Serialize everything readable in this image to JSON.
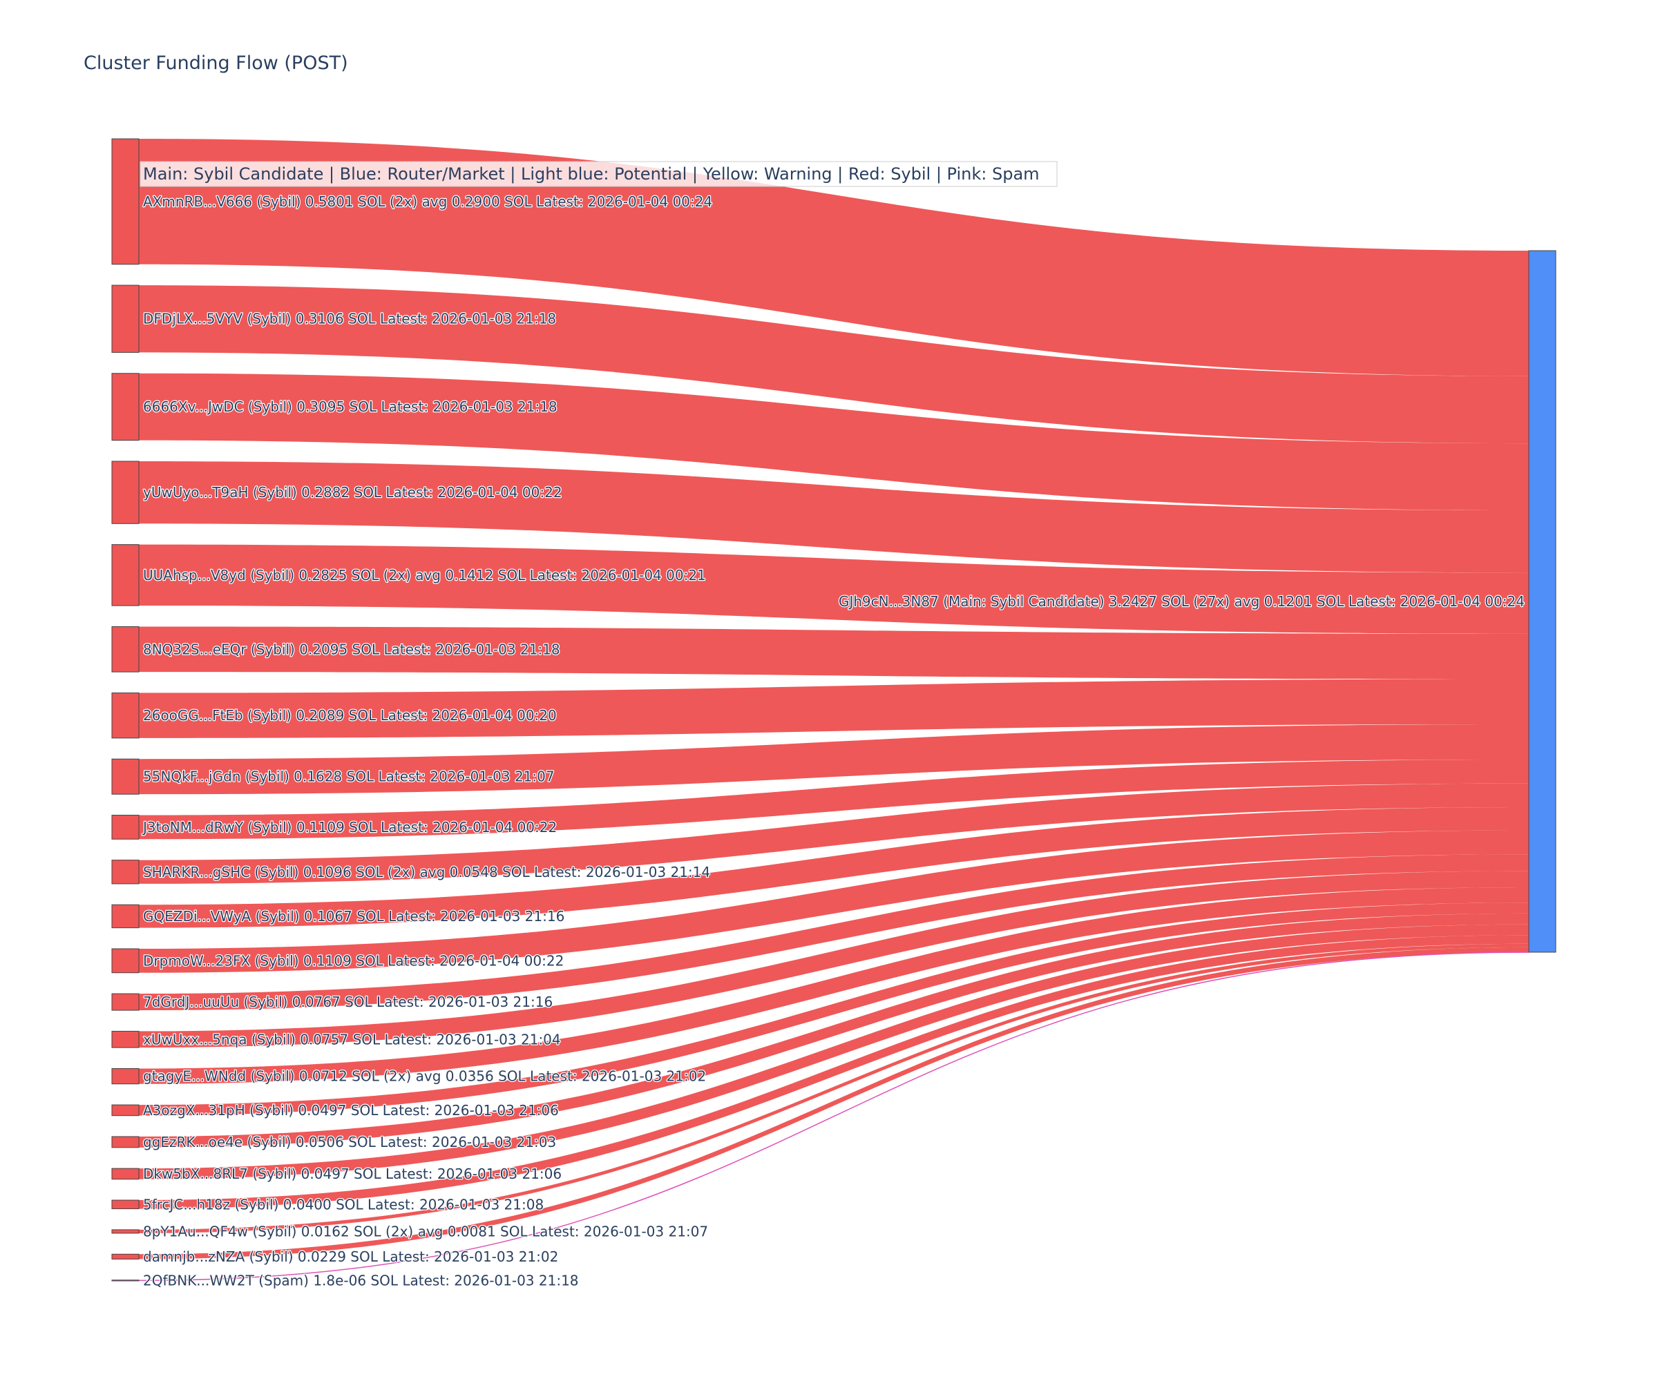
{
  "chart_data": {
    "type": "sankey",
    "title": "Cluster Funding Flow (POST)",
    "legend": "Main: Sybil Candidate  |  Blue: Router/Market | Light blue: Potential | Yellow: Warning | Red: Sybil | Pink: Spam",
    "target": {
      "name": "GJh9cN...3N87 (Main: Sybil Candidate) 3.2427 SOL (27x) avg 0.1201 SOL Latest: 2026-01-04 00:24",
      "value": 3.2427,
      "color": "#4f8ff7"
    },
    "colors": {
      "sybil": "#ef5555",
      "spam": "#e052b8",
      "node_border": "#444444"
    },
    "sources": [
      {
        "label": "AXmnRB...V666 (Sybil) 0.5801 SOL (2x) avg 0.2900 SOL Latest: 2026-01-04 00:24",
        "value": 0.5801,
        "category": "sybil"
      },
      {
        "label": "DFDjLX...5VYV (Sybil) 0.3106 SOL Latest: 2026-01-03 21:18",
        "value": 0.3106,
        "category": "sybil"
      },
      {
        "label": "6666Xv...JwDC (Sybil) 0.3095 SOL Latest: 2026-01-03 21:18",
        "value": 0.3095,
        "category": "sybil"
      },
      {
        "label": "yUwUyo...T9aH (Sybil) 0.2882 SOL Latest: 2026-01-04 00:22",
        "value": 0.2882,
        "category": "sybil"
      },
      {
        "label": "UUAhsp...V8yd (Sybil) 0.2825 SOL (2x) avg 0.1412 SOL Latest: 2026-01-04 00:21",
        "value": 0.2825,
        "category": "sybil"
      },
      {
        "label": "8NQ32S...eEQr (Sybil) 0.2095 SOL Latest: 2026-01-03 21:18",
        "value": 0.2095,
        "category": "sybil"
      },
      {
        "label": "26ooGG...FtEb (Sybil) 0.2089 SOL Latest: 2026-01-04 00:20",
        "value": 0.2089,
        "category": "sybil"
      },
      {
        "label": "55NQkF...jGdn (Sybil) 0.1628 SOL Latest: 2026-01-03 21:07",
        "value": 0.1628,
        "category": "sybil"
      },
      {
        "label": "J3toNM...dRwY (Sybil) 0.1109 SOL Latest: 2026-01-04 00:22",
        "value": 0.1109,
        "category": "sybil"
      },
      {
        "label": "SHARKR...gSHC (Sybil) 0.1096 SOL (2x) avg 0.0548 SOL Latest: 2026-01-03 21:14",
        "value": 0.1096,
        "category": "sybil"
      },
      {
        "label": "GQEZDi...VWyA (Sybil) 0.1067 SOL Latest: 2026-01-03 21:16",
        "value": 0.1067,
        "category": "sybil"
      },
      {
        "label": "DrpmoW...23FX (Sybil) 0.1109 SOL Latest: 2026-01-04 00:22",
        "value": 0.1109,
        "category": "sybil"
      },
      {
        "label": "7dGrdJ...uuUu (Sybil) 0.0767 SOL Latest: 2026-01-03 21:16",
        "value": 0.0767,
        "category": "sybil"
      },
      {
        "label": "xUwUxx...5nqa (Sybil) 0.0757 SOL Latest: 2026-01-03 21:04",
        "value": 0.0757,
        "category": "sybil"
      },
      {
        "label": "gtagyE...WNdd (Sybil) 0.0712 SOL (2x) avg 0.0356 SOL Latest: 2026-01-03 21:02",
        "value": 0.0712,
        "category": "sybil"
      },
      {
        "label": "A3ozgX...31pH (Sybil) 0.0497 SOL Latest: 2026-01-03 21:06",
        "value": 0.0497,
        "category": "sybil"
      },
      {
        "label": "ggEzRK...oe4e (Sybil) 0.0506 SOL Latest: 2026-01-03 21:03",
        "value": 0.0506,
        "category": "sybil"
      },
      {
        "label": "Dkw5bX...8RL7 (Sybil) 0.0497 SOL Latest: 2026-01-03 21:06",
        "value": 0.0497,
        "category": "sybil"
      },
      {
        "label": "5frcJC...h18z (Sybil) 0.0400 SOL Latest: 2026-01-03 21:08",
        "value": 0.04,
        "category": "sybil"
      },
      {
        "label": "8pY1Au...QF4w (Sybil) 0.0162 SOL (2x) avg 0.0081 SOL Latest: 2026-01-03 21:07",
        "value": 0.0162,
        "category": "sybil"
      },
      {
        "label": "damnjb...zNZA (Sybil) 0.0229 SOL Latest: 2026-01-03 21:02",
        "value": 0.0229,
        "category": "sybil"
      },
      {
        "label": "2QfBNK...WW2T (Spam) 1.8e-06 SOL Latest: 2026-01-03 21:18",
        "value": 1.8e-06,
        "category": "spam"
      }
    ]
  }
}
